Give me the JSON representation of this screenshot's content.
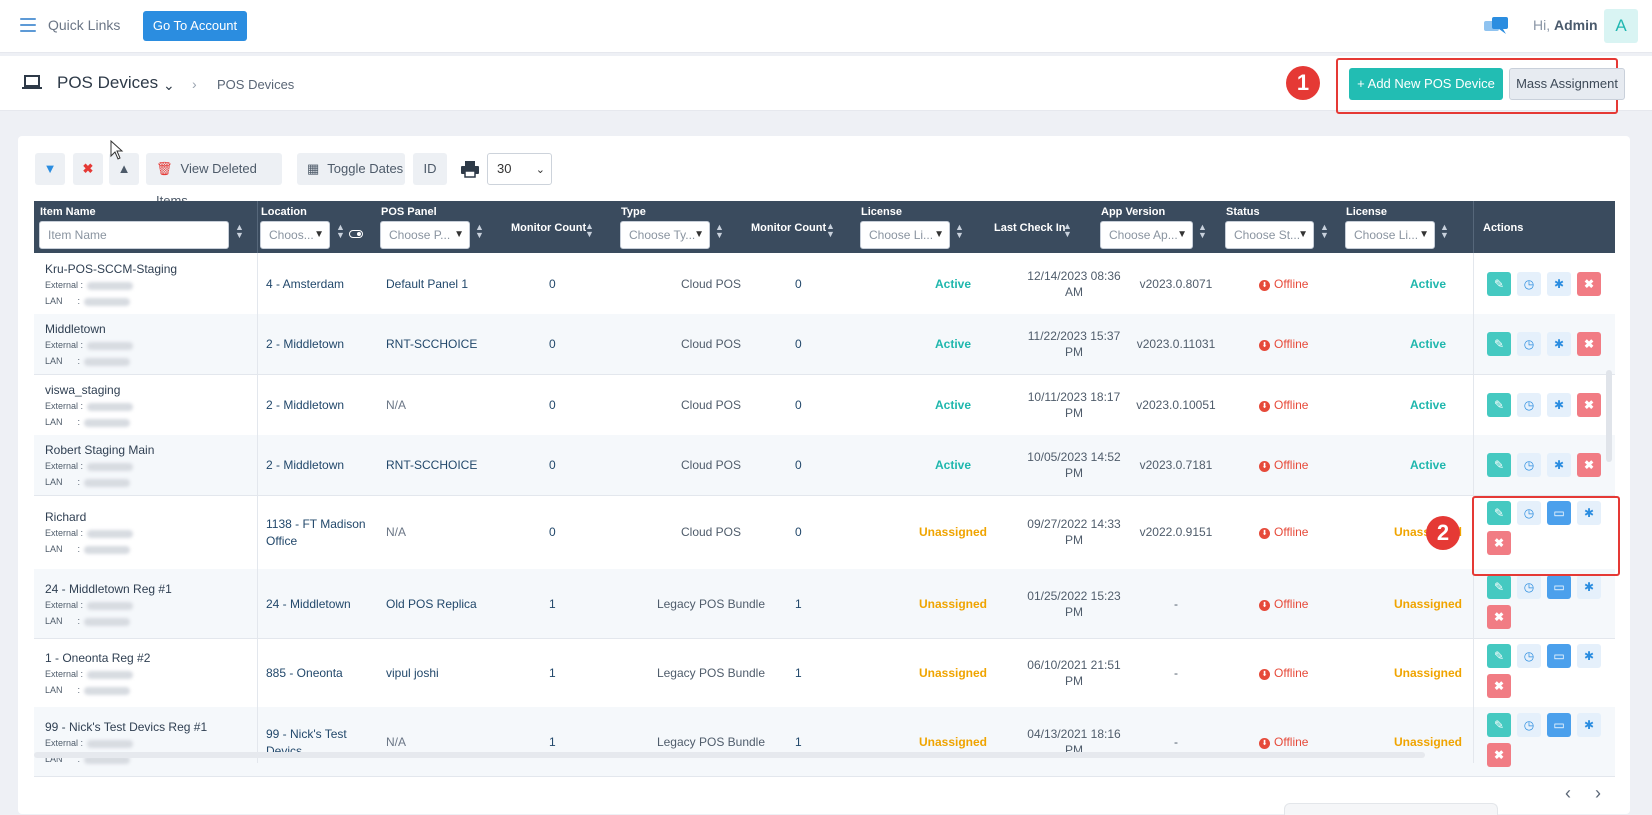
{
  "topbar": {
    "quick_links": "Quick Links",
    "go_to_account": "Go To Account",
    "greeting": "Hi, ",
    "user": "Admin",
    "avatar_letter": "A"
  },
  "subbar": {
    "title": "POS Devices",
    "breadcrumb": "POS Devices",
    "add_button": "+ Add New POS Device",
    "mass_button": "Mass Assignment",
    "callout_1": "1"
  },
  "toolbar": {
    "view_deleted": "View Deleted Items",
    "toggle_dates": "Toggle Dates",
    "id": "ID",
    "page_size": "30"
  },
  "columns": {
    "item_name": "Item Name",
    "item_name_placeholder": "Item Name",
    "location": "Location",
    "location_ph": "Choos...",
    "pos_panel": "POS Panel",
    "pos_panel_ph": "Choose P...",
    "monitor_count": "Monitor Count",
    "type": "Type",
    "type_ph": "Choose Ty...",
    "monitor_count_2": "Monitor Count",
    "license": "License",
    "license_ph": "Choose Li...",
    "last_check_in": "Last Check In",
    "app_version": "App Version",
    "app_version_ph": "Choose Ap...",
    "status": "Status",
    "status_ph": "Choose St...",
    "license_2": "License",
    "license_2_ph": "Choose Li...",
    "actions": "Actions"
  },
  "labels": {
    "external": "External :",
    "lan": "LAN"
  },
  "rows": [
    {
      "name": "Kru-POS-SCCM-Staging",
      "location": "4 - Amsterdam",
      "location2": "",
      "panel": "Default Panel 1",
      "mc1": "0",
      "type": "Cloud POS",
      "mc2": "0",
      "license": "Active",
      "check1": "12/14/2023 08:36",
      "check2": "AM",
      "version": "v2023.0.8071",
      "status": "Offline",
      "license2": "Active"
    },
    {
      "name": "Middletown",
      "location": "2 - Middletown",
      "location2": "",
      "panel": "RNT-SCCHOICE",
      "mc1": "0",
      "type": "Cloud POS",
      "mc2": "0",
      "license": "Active",
      "check1": "11/22/2023 15:37",
      "check2": "PM",
      "version": "v2023.0.11031",
      "status": "Offline",
      "license2": "Active"
    },
    {
      "name": "viswa_staging",
      "location": "2 - Middletown",
      "location2": "",
      "panel": "N/A",
      "mc1": "0",
      "type": "Cloud POS",
      "mc2": "0",
      "license": "Active",
      "check1": "10/11/2023 18:17",
      "check2": "PM",
      "version": "v2023.0.10051",
      "status": "Offline",
      "license2": "Active"
    },
    {
      "name": "Robert Staging Main",
      "location": "2 - Middletown",
      "location2": "",
      "panel": "RNT-SCCHOICE",
      "mc1": "0",
      "type": "Cloud POS",
      "mc2": "0",
      "license": "Active",
      "check1": "10/05/2023 14:52",
      "check2": "PM",
      "version": "v2023.0.7181",
      "status": "Offline",
      "license2": "Active"
    },
    {
      "name": "Richard",
      "location": "1138 - FT Madison",
      "location2": "Office",
      "panel": "N/A",
      "mc1": "0",
      "type": "Cloud POS",
      "mc2": "0",
      "license": "Unassigned",
      "check1": "09/27/2022 14:33",
      "check2": "PM",
      "version": "v2022.0.9151",
      "status": "Offline",
      "license2": "Unassigned"
    },
    {
      "name": "24 - Middletown Reg #1",
      "location": "24 - Middletown",
      "location2": "",
      "panel": "Old POS Replica",
      "mc1": "1",
      "type": "Legacy POS Bundle",
      "mc2": "1",
      "license": "Unassigned",
      "check1": "01/25/2022 15:23",
      "check2": "PM",
      "version": "-",
      "status": "Offline",
      "license2": "Unassigned"
    },
    {
      "name": "1 - Oneonta Reg #2",
      "location": "885 - Oneonta",
      "location2": "",
      "panel": "vipul joshi",
      "mc1": "1",
      "type": "Legacy POS Bundle",
      "mc2": "1",
      "license": "Unassigned",
      "check1": "06/10/2021 21:51",
      "check2": "PM",
      "version": "-",
      "status": "Offline",
      "license2": "Unassigned"
    },
    {
      "name": "99 - Nick's Test Devics Reg #1",
      "location": "99 - Nick's Test",
      "location2": "Devics",
      "panel": "N/A",
      "mc1": "1",
      "type": "Legacy POS Bundle",
      "mc2": "1",
      "license": "Unassigned",
      "check1": "04/13/2021 18:16",
      "check2": "PM",
      "version": "-",
      "status": "Offline",
      "license2": "Unassigned"
    }
  ],
  "actions": {
    "edit": "✎",
    "history": "◷",
    "card": "▭",
    "bug": "✱",
    "delete": "✖"
  },
  "callout_2": "2",
  "pagination": {
    "prev": "‹",
    "next": "›"
  }
}
